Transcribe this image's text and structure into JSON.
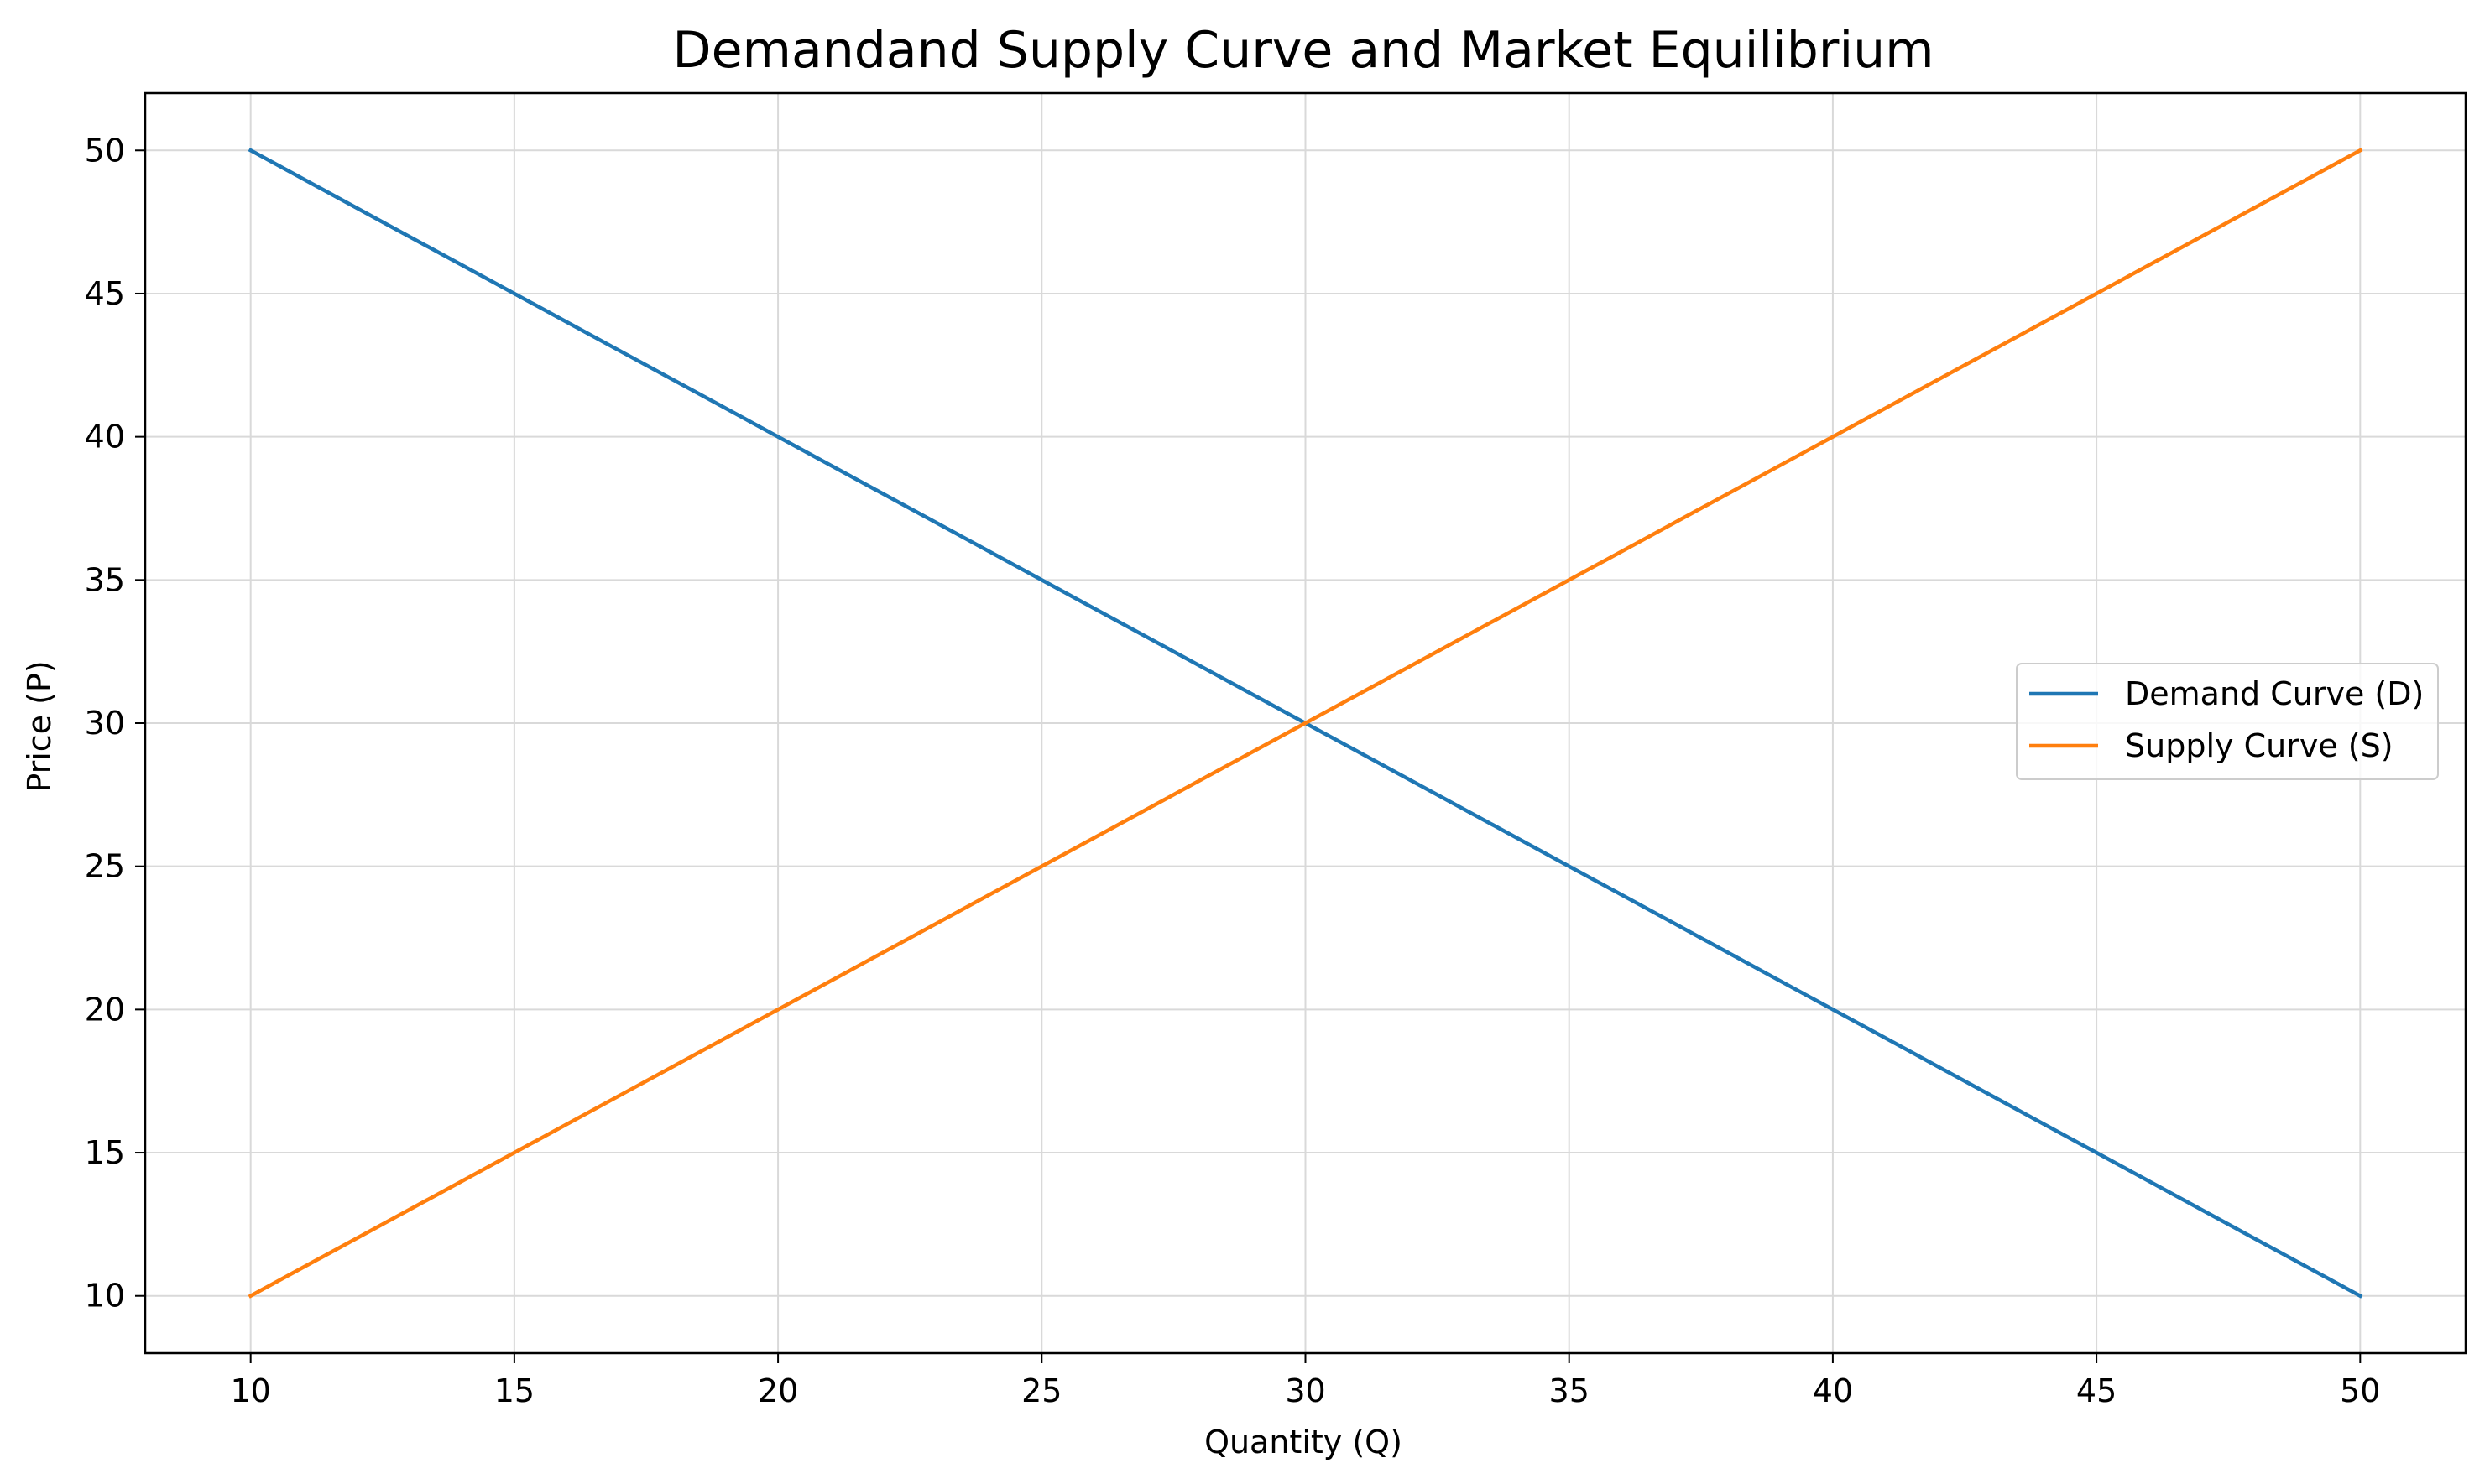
{
  "chart_data": {
    "type": "line",
    "title": "Demandand Supply Curve and Market Equilibrium",
    "xlabel": "Quantity (Q)",
    "ylabel": "Price (P)",
    "xlim": [
      8,
      52
    ],
    "ylim": [
      8,
      52
    ],
    "xticks": [
      10,
      15,
      20,
      25,
      30,
      35,
      40,
      45,
      50
    ],
    "yticks": [
      10,
      15,
      20,
      25,
      30,
      35,
      40,
      45,
      50
    ],
    "grid": true,
    "legend_position": "center-right",
    "series": [
      {
        "name": "Demand Curve (D)",
        "color": "#1f77b4",
        "x": [
          10,
          50
        ],
        "y": [
          50,
          10
        ]
      },
      {
        "name": "Supply Curve (S)",
        "color": "#ff7f0e",
        "x": [
          10,
          50
        ],
        "y": [
          10,
          50
        ]
      }
    ]
  }
}
